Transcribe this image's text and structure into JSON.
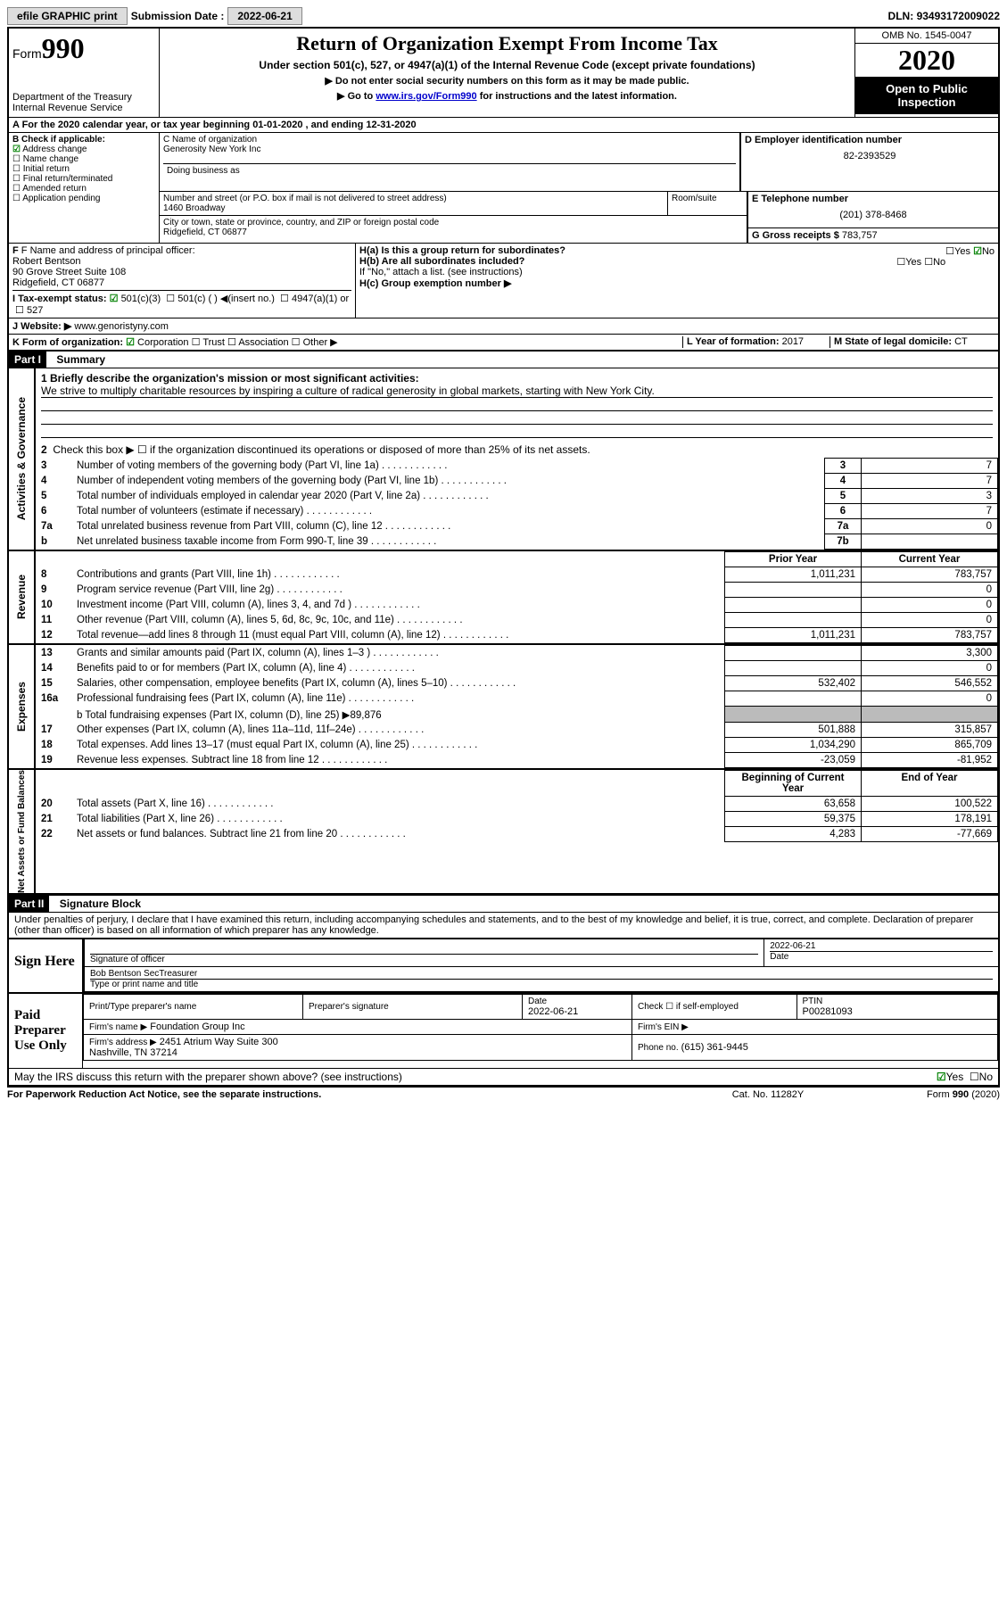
{
  "top": {
    "efile": "efile GRAPHIC print",
    "sub_label": "Submission Date :",
    "sub_date": "2022-06-21",
    "dln_label": "DLN:",
    "dln": "93493172009022"
  },
  "header": {
    "form_word": "Form",
    "form_num": "990",
    "dept": "Department of the Treasury",
    "irs": "Internal Revenue Service",
    "title": "Return of Organization Exempt From Income Tax",
    "sub": "Under section 501(c), 527, or 4947(a)(1) of the Internal Revenue Code (except private foundations)",
    "note1": "▶ Do not enter social security numbers on this form as it may be made public.",
    "note2_pre": "▶ Go to ",
    "note2_link": "www.irs.gov/Form990",
    "note2_post": " for instructions and the latest information.",
    "omb": "OMB No. 1545-0047",
    "year": "2020",
    "inspection": "Open to Public Inspection"
  },
  "a": {
    "text": "A   For the 2020 calendar year, or tax year beginning 01-01-2020    , and ending 12-31-2020"
  },
  "b": {
    "label": "B Check if applicable:",
    "items": [
      {
        "c": true,
        "t": "Address change"
      },
      {
        "c": false,
        "t": "Name change"
      },
      {
        "c": false,
        "t": "Initial return"
      },
      {
        "c": false,
        "t": "Final return/terminated"
      },
      {
        "c": false,
        "t": "Amended return"
      },
      {
        "c": false,
        "t": "Application pending"
      }
    ]
  },
  "c": {
    "name_lbl": "C Name of organization",
    "name": "Generosity New York Inc",
    "dba_lbl": "Doing business as",
    "street_lbl": "Number and street (or P.O. box if mail is not delivered to street address)",
    "street": "1460 Broadway",
    "room_lbl": "Room/suite",
    "city_lbl": "City or town, state or province, country, and ZIP or foreign postal code",
    "city": "Ridgefield, CT  06877"
  },
  "d": {
    "lbl": "D Employer identification number",
    "val": "82-2393529"
  },
  "e": {
    "lbl": "E Telephone number",
    "val": "(201) 378-8468"
  },
  "g": {
    "lbl": "G Gross receipts $",
    "val": "783,757"
  },
  "f": {
    "lbl": "F Name and address of principal officer:",
    "name": "Robert Bentson",
    "addr1": "90 Grove Street Suite 108",
    "addr2": "Ridgefield, CT  06877"
  },
  "h": {
    "a": "H(a)  Is this a group return for subordinates?",
    "a_yes": "Yes",
    "a_no": "No",
    "b": "H(b)  Are all subordinates included?",
    "b_yes": "Yes",
    "b_no": "No",
    "b_note": "If \"No,\" attach a list. (see instructions)",
    "c": "H(c)  Group exemption number ▶"
  },
  "i_row": {
    "lbl": "I    Tax-exempt status:",
    "opts": [
      "501(c)(3)",
      "501(c) (   ) ◀(insert no.)",
      "4947(a)(1) or",
      "527"
    ],
    "checked": 0
  },
  "j": {
    "lbl": "J   Website: ▶",
    "val": "www.genoristyny.com"
  },
  "k": {
    "lbl": "K Form of organization:",
    "opts": [
      "Corporation",
      "Trust",
      "Association",
      "Other ▶"
    ],
    "checked": 0
  },
  "l": {
    "lbl": "L Year of formation:",
    "val": "2017"
  },
  "m": {
    "lbl": "M State of legal domicile:",
    "val": "CT"
  },
  "part1": {
    "num": "Part I",
    "title": "Summary"
  },
  "gov": {
    "side": "Activities & Governance",
    "l1_lbl": "1  Briefly describe the organization's mission or most significant activities:",
    "l1_text": "We strive to multiply charitable resources by inspiring a culture of radical generosity in global markets, starting with New York City.",
    "l2": "Check this box ▶ ☐  if the organization discontinued its operations or disposed of more than 25% of its net assets.",
    "rows": [
      {
        "n": "3",
        "d": "Number of voting members of the governing body (Part VI, line 1a)",
        "b": "3",
        "v": "7"
      },
      {
        "n": "4",
        "d": "Number of independent voting members of the governing body (Part VI, line 1b)",
        "b": "4",
        "v": "7"
      },
      {
        "n": "5",
        "d": "Total number of individuals employed in calendar year 2020 (Part V, line 2a)",
        "b": "5",
        "v": "3"
      },
      {
        "n": "6",
        "d": "Total number of volunteers (estimate if necessary)",
        "b": "6",
        "v": "7"
      },
      {
        "n": "7a",
        "d": "Total unrelated business revenue from Part VIII, column (C), line 12",
        "b": "7a",
        "v": "0"
      },
      {
        "n": "b",
        "d": "Net unrelated business taxable income from Form 990-T, line 39",
        "b": "7b",
        "v": ""
      }
    ]
  },
  "rev": {
    "side": "Revenue",
    "head_prior": "Prior Year",
    "head_curr": "Current Year",
    "rows": [
      {
        "n": "8",
        "d": "Contributions and grants (Part VIII, line 1h)",
        "p": "1,011,231",
        "c": "783,757"
      },
      {
        "n": "9",
        "d": "Program service revenue (Part VIII, line 2g)",
        "p": "",
        "c": "0"
      },
      {
        "n": "10",
        "d": "Investment income (Part VIII, column (A), lines 3, 4, and 7d )",
        "p": "",
        "c": "0"
      },
      {
        "n": "11",
        "d": "Other revenue (Part VIII, column (A), lines 5, 6d, 8c, 9c, 10c, and 11e)",
        "p": "",
        "c": "0"
      },
      {
        "n": "12",
        "d": "Total revenue—add lines 8 through 11 (must equal Part VIII, column (A), line 12)",
        "p": "1,011,231",
        "c": "783,757"
      }
    ]
  },
  "exp": {
    "side": "Expenses",
    "rows": [
      {
        "n": "13",
        "d": "Grants and similar amounts paid (Part IX, column (A), lines 1–3 )",
        "p": "",
        "c": "3,300"
      },
      {
        "n": "14",
        "d": "Benefits paid to or for members (Part IX, column (A), line 4)",
        "p": "",
        "c": "0"
      },
      {
        "n": "15",
        "d": "Salaries, other compensation, employee benefits (Part IX, column (A), lines 5–10)",
        "p": "532,402",
        "c": "546,552"
      },
      {
        "n": "16a",
        "d": "Professional fundraising fees (Part IX, column (A), line 11e)",
        "p": "",
        "c": "0"
      }
    ],
    "l16b": "b  Total fundraising expenses (Part IX, column (D), line 25) ▶89,876",
    "rows2": [
      {
        "n": "17",
        "d": "Other expenses (Part IX, column (A), lines 11a–11d, 11f–24e)",
        "p": "501,888",
        "c": "315,857"
      },
      {
        "n": "18",
        "d": "Total expenses. Add lines 13–17 (must equal Part IX, column (A), line 25)",
        "p": "1,034,290",
        "c": "865,709"
      },
      {
        "n": "19",
        "d": "Revenue less expenses. Subtract line 18 from line 12",
        "p": "-23,059",
        "c": "-81,952"
      }
    ]
  },
  "net": {
    "side": "Net Assets or Fund Balances",
    "head_beg": "Beginning of Current Year",
    "head_end": "End of Year",
    "rows": [
      {
        "n": "20",
        "d": "Total assets (Part X, line 16)",
        "p": "63,658",
        "c": "100,522"
      },
      {
        "n": "21",
        "d": "Total liabilities (Part X, line 26)",
        "p": "59,375",
        "c": "178,191"
      },
      {
        "n": "22",
        "d": "Net assets or fund balances. Subtract line 21 from line 20",
        "p": "4,283",
        "c": "-77,669"
      }
    ]
  },
  "part2": {
    "num": "Part II",
    "title": "Signature Block"
  },
  "perjury": "Under penalties of perjury, I declare that I have examined this return, including accompanying schedules and statements, and to the best of my knowledge and belief, it is true, correct, and complete. Declaration of preparer (other than officer) is based on all information of which preparer has any knowledge.",
  "sign": {
    "left": "Sign Here",
    "sig_lbl": "Signature of officer",
    "date": "2022-06-21",
    "date_lbl": "Date",
    "name": "Bob Bentson SecTreasurer",
    "name_lbl": "Type or print name and title"
  },
  "prep": {
    "left": "Paid Preparer Use Only",
    "h1": "Print/Type preparer's name",
    "h2": "Preparer's signature",
    "h3_lbl": "Date",
    "h3": "2022-06-21",
    "h4": "Check ☐ if self-employed",
    "h5_lbl": "PTIN",
    "h5": "P00281093",
    "firm_name_lbl": "Firm's name    ▶",
    "firm_name": "Foundation Group Inc",
    "firm_ein_lbl": "Firm's EIN ▶",
    "firm_addr_lbl": "Firm's address ▶",
    "firm_addr1": "2451 Atrium Way Suite 300",
    "firm_addr2": "Nashville, TN  37214",
    "phone_lbl": "Phone no.",
    "phone": "(615) 361-9445"
  },
  "discuss": {
    "q": "May the IRS discuss this return with the preparer shown above? (see instructions)",
    "yes": "Yes",
    "no": "No"
  },
  "footer": {
    "pra": "For Paperwork Reduction Act Notice, see the separate instructions.",
    "cat": "Cat. No. 11282Y",
    "form": "Form 990 (2020)"
  }
}
